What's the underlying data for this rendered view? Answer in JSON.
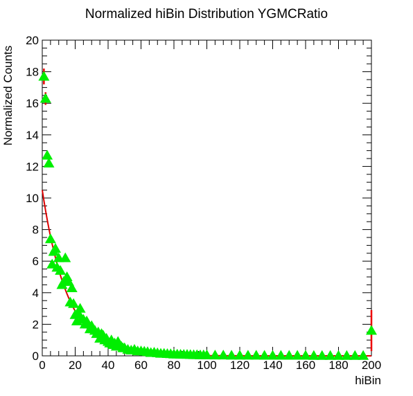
{
  "chart_data": {
    "type": "scatter",
    "title": "Normalized hiBin Distribution YGMCRatio",
    "xlabel": "hiBin",
    "ylabel": "Normalized Counts",
    "xlim": [
      0,
      200
    ],
    "ylim": [
      0,
      20
    ],
    "x_ticks": [
      "0",
      "20",
      "40",
      "60",
      "80",
      "100",
      "120",
      "140",
      "160",
      "180",
      "200"
    ],
    "y_ticks": [
      "0",
      "2",
      "4",
      "6",
      "8",
      "10",
      "12",
      "14",
      "16",
      "18",
      "20"
    ],
    "grid": false,
    "legend": "none",
    "marker": "triangle-up",
    "marker_color": "#00ee00",
    "error_color": "#ee0000",
    "fit_color": "#dd0000",
    "series": [
      {
        "type": "scatter",
        "x": [
          1,
          2,
          3,
          4,
          5,
          6,
          7,
          8,
          9,
          10,
          11,
          12,
          13,
          14,
          15,
          16,
          17,
          18,
          19,
          20,
          21,
          22,
          23,
          24,
          25,
          26,
          27,
          28,
          29,
          30,
          31,
          32,
          33,
          34,
          35,
          36,
          37,
          38,
          39,
          40,
          41,
          42,
          43,
          44,
          45,
          46,
          47,
          48,
          49,
          50,
          52,
          54,
          56,
          58,
          60,
          62,
          64,
          66,
          68,
          70,
          72,
          74,
          76,
          78,
          80,
          82,
          84,
          86,
          88,
          90,
          92,
          94,
          96,
          98,
          100,
          105,
          110,
          115,
          120,
          125,
          130,
          135,
          140,
          145,
          150,
          155,
          160,
          165,
          170,
          175,
          180,
          185,
          190,
          195,
          200
        ],
        "y": [
          17.7,
          16.3,
          12.7,
          12.2,
          7.4,
          5.8,
          6.6,
          6.8,
          5.6,
          6.2,
          5.4,
          4.5,
          4.7,
          6.2,
          5.0,
          4.7,
          3.4,
          4.3,
          3.3,
          2.6,
          2.2,
          2.7,
          3.0,
          2.3,
          2.3,
          2.0,
          2.2,
          2.0,
          1.7,
          1.9,
          1.7,
          1.6,
          1.4,
          1.5,
          1.1,
          1.4,
          1.3,
          1.0,
          1.1,
          0.9,
          0.8,
          1.0,
          0.7,
          0.8,
          0.6,
          0.9,
          0.7,
          0.6,
          0.5,
          0.5,
          0.4,
          0.35,
          0.4,
          0.3,
          0.3,
          0.28,
          0.25,
          0.2,
          0.22,
          0.18,
          0.15,
          0.15,
          0.13,
          0.12,
          0.1,
          0.1,
          0.09,
          0.08,
          0.08,
          0.07,
          0.06,
          0.06,
          0.05,
          0.05,
          0.05,
          0.04,
          0.04,
          0.03,
          0.03,
          0.03,
          0.03,
          0.02,
          0.02,
          0.02,
          0.02,
          0.02,
          0.02,
          0.01,
          0.01,
          0.01,
          0.01,
          0.01,
          0.01,
          0.01,
          1.6
        ],
        "yerr": [
          0.5,
          0.4,
          0.2,
          0.2,
          0.1,
          0.1,
          0.1,
          0.1,
          0.1,
          0.1,
          0.1,
          0.1,
          0.1,
          0.1,
          0.1,
          0.1,
          0.1,
          0.1,
          0.1,
          0.1,
          0.05,
          0.05,
          0.05,
          0.05,
          0.05,
          0.05,
          0.05,
          0.05,
          0.05,
          0.05,
          0.05,
          0.05,
          0.05,
          0.05,
          0.05,
          0.05,
          0.05,
          0.05,
          0.05,
          0.05,
          0.05,
          0.05,
          0.05,
          0.05,
          0.05,
          0.05,
          0.05,
          0.05,
          0.05,
          0.05,
          0.03,
          0.03,
          0.03,
          0.03,
          0.03,
          0.03,
          0.03,
          0.03,
          0.03,
          0.03,
          0.03,
          0.03,
          0.03,
          0.03,
          0.03,
          0.03,
          0.03,
          0.03,
          0.03,
          0.03,
          0.03,
          0.03,
          0.03,
          0.03,
          0.03,
          0.02,
          0.02,
          0.02,
          0.02,
          0.02,
          0.02,
          0.02,
          0.02,
          0.02,
          0.02,
          0.02,
          0.02,
          0.02,
          0.02,
          0.02,
          0.02,
          0.02,
          0.02,
          0.02,
          1.3
        ]
      },
      {
        "type": "line",
        "function": "exponential",
        "amplitude": 10.5,
        "decay": 0.0655,
        "xrange": [
          0,
          200
        ]
      }
    ]
  }
}
